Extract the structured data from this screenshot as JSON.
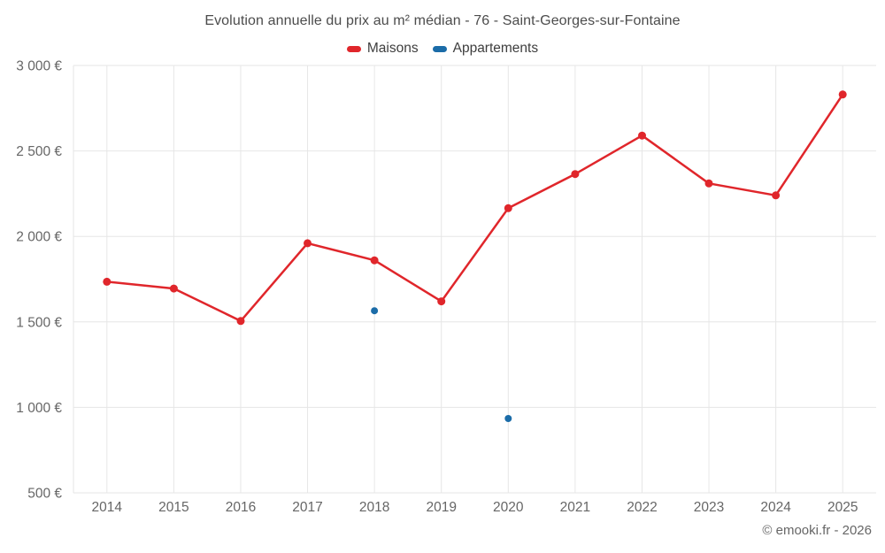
{
  "header": {
    "title": "Evolution annuelle du prix au m² médian - 76 - Saint-Georges-sur-Fontaine"
  },
  "footer": {
    "copyright": "© emooki.fr - 2026"
  },
  "theme": {
    "background": "#ffffff",
    "grid": "#e6e6e6",
    "axis_label": "#666666",
    "title_color": "#4c4c4c",
    "legend_text": "#3e3e3e",
    "footer_color": "#666666"
  },
  "chart_data": {
    "type": "line",
    "title": "Evolution annuelle du prix au m² médian - 76 - Saint-Georges-sur-Fontaine",
    "categories": [
      "2014",
      "2015",
      "2016",
      "2017",
      "2018",
      "2019",
      "2020",
      "2021",
      "2022",
      "2023",
      "2024",
      "2025"
    ],
    "series": [
      {
        "name": "Maisons",
        "color": "#e0262b",
        "line_width": 2.5,
        "marker_radius": 4.5,
        "values": [
          1735,
          1695,
          1505,
          1960,
          1860,
          1620,
          2165,
          2365,
          2590,
          2310,
          2240,
          2830
        ]
      },
      {
        "name": "Appartements",
        "color": "#1b6ca8",
        "line_width": 0,
        "marker_radius": 4,
        "values": [
          null,
          null,
          null,
          null,
          1565,
          null,
          935,
          null,
          null,
          null,
          null,
          null
        ]
      }
    ],
    "xlabel": "",
    "ylabel": "",
    "yaxis": {
      "min": 500,
      "max": 3000,
      "step": 500,
      "unit": "€",
      "tick_format": "1 000 €"
    },
    "grid": true,
    "legend_position": "top"
  }
}
